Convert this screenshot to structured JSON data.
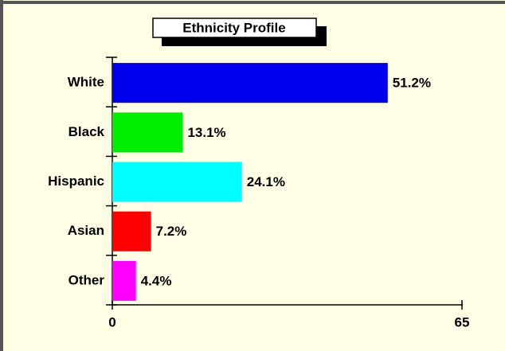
{
  "chart_data": {
    "type": "barh",
    "title": "Ethnicity Profile",
    "categories": [
      "White",
      "Black",
      "Hispanic",
      "Asian",
      "Other"
    ],
    "values": [
      51.2,
      13.1,
      24.1,
      7.2,
      4.4
    ],
    "value_labels": [
      "51.2%",
      "13.1%",
      "24.1%",
      "7.2%",
      "4.4%"
    ],
    "colors": [
      "#0000ee",
      "#00ee00",
      "#00ffff",
      "#ff0000",
      "#ff00ff"
    ],
    "xlim": [
      0,
      65
    ],
    "xticks": [
      0,
      65
    ]
  }
}
